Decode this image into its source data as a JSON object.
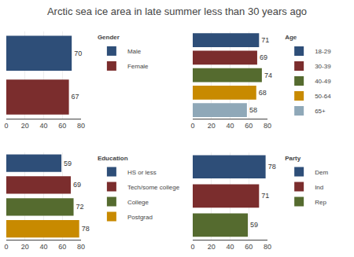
{
  "title": "Arctic sea ice area in late summer less than 30 years ago",
  "chart_data": [
    {
      "type": "bar",
      "orientation": "horizontal",
      "legend_title": "Gender",
      "categories": [
        "Male",
        "Female"
      ],
      "values": [
        70,
        67
      ],
      "colors": [
        "#2e4e78",
        "#7b2d2d"
      ],
      "xlim": [
        0,
        80
      ],
      "xticks": [
        0,
        20,
        40,
        60,
        80
      ],
      "grid": true,
      "data_labels": true,
      "tick_labels": "x",
      "legend": "right"
    },
    {
      "type": "bar",
      "orientation": "horizontal",
      "legend_title": "Age",
      "categories": [
        "18-29",
        "30-39",
        "40-49",
        "50-64",
        "65+"
      ],
      "values": [
        71,
        69,
        74,
        68,
        58
      ],
      "colors": [
        "#2e4e78",
        "#7b2d2d",
        "#556b2f",
        "#c88a00",
        "#8fa8b8"
      ],
      "xlim": [
        0,
        80
      ],
      "xticks": [
        0,
        20,
        40,
        60,
        80
      ],
      "grid": true,
      "data_labels": true,
      "tick_labels": "x",
      "legend": "right"
    },
    {
      "type": "bar",
      "orientation": "horizontal",
      "legend_title": "Education",
      "categories": [
        "HS or less",
        "Tech/some college",
        "College",
        "Postgrad"
      ],
      "values": [
        59,
        69,
        72,
        78
      ],
      "colors": [
        "#2e4e78",
        "#7b2d2d",
        "#556b2f",
        "#c88a00"
      ],
      "xlim": [
        0,
        80
      ],
      "xticks": [
        0,
        20,
        40,
        60,
        80
      ],
      "grid": true,
      "data_labels": true,
      "tick_labels": "x",
      "legend": "right"
    },
    {
      "type": "bar",
      "orientation": "horizontal",
      "legend_title": "Party",
      "categories": [
        "Dem",
        "Ind",
        "Rep"
      ],
      "values": [
        78,
        71,
        59
      ],
      "colors": [
        "#2e4e78",
        "#7b2d2d",
        "#556b2f"
      ],
      "xlim": [
        0,
        80
      ],
      "xticks": [
        0,
        20,
        40,
        60,
        80
      ],
      "grid": true,
      "data_labels": true,
      "tick_labels": "x",
      "legend": "right"
    }
  ]
}
